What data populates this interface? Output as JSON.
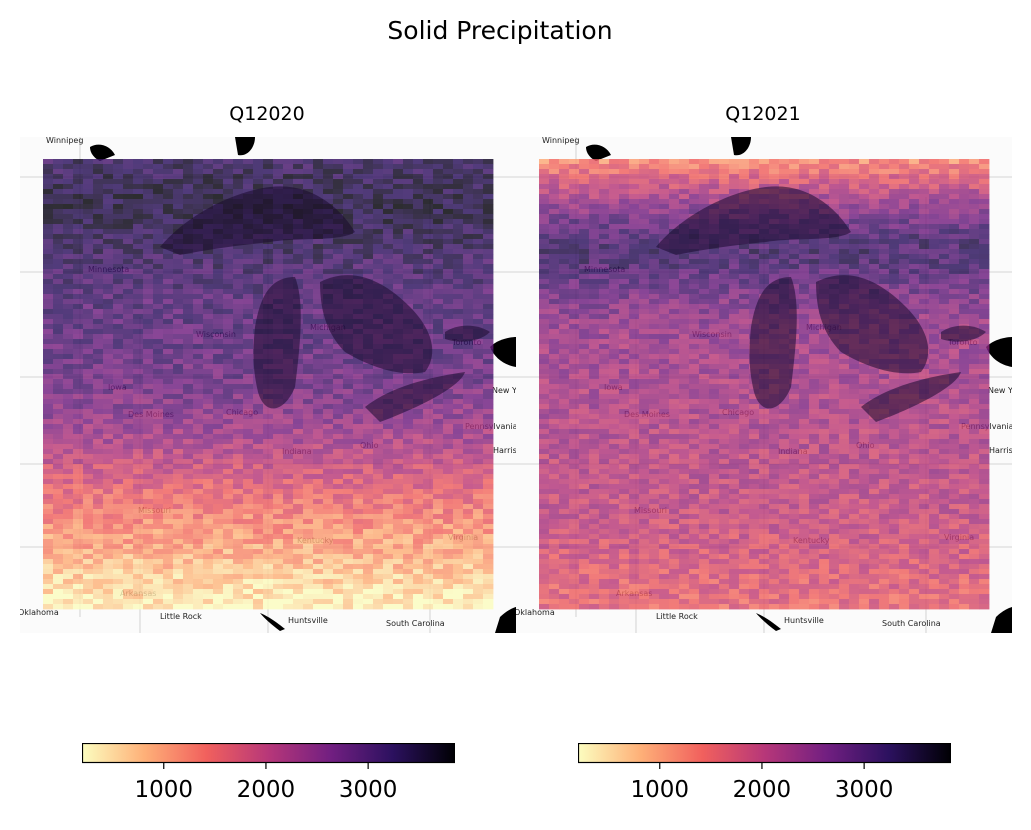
{
  "figure": {
    "title": "Solid Precipitation"
  },
  "colormap": {
    "name": "magma_r",
    "stops": [
      "#fcfdbf",
      "#feb078",
      "#f1605d",
      "#b73779",
      "#721f81",
      "#2c115f",
      "#000004"
    ]
  },
  "chart_data": [
    {
      "type": "heatmap",
      "panel_title": "Q12020",
      "description_type": "gridded map overlay on Great Lakes region basemap",
      "colorbar": {
        "vmin": 200,
        "vmax": 3850,
        "ticks": [
          1000,
          2000,
          3000
        ],
        "tick_labels": [
          "1000",
          "2000",
          "3000"
        ]
      },
      "row_profile": [
        3300,
        3450,
        3550,
        3400,
        3250,
        3100,
        3000,
        2950,
        2900,
        2800,
        2650,
        2450,
        2200,
        1900,
        1600,
        1300,
        1050,
        800,
        550,
        300
      ],
      "basemap_labels": [
        "Winnipeg",
        "Minnesota",
        "Wisconsin",
        "Michigan",
        "Iowa",
        "Chicago",
        "Des Moines",
        "Indiana",
        "Ohio",
        "Pennsylvania",
        "Missouri",
        "Kentucky",
        "Virginia",
        "Arkansas",
        "Oklahoma",
        "Little Rock",
        "Huntsville",
        "South Carolina",
        "Toronto",
        "New York",
        "Harrisburg"
      ]
    },
    {
      "type": "heatmap",
      "panel_title": "Q12021",
      "description_type": "gridded map overlay on Great Lakes region basemap",
      "colorbar": {
        "vmin": 200,
        "vmax": 3850,
        "ticks": [
          1000,
          2000,
          3000
        ],
        "tick_labels": [
          "1000",
          "2000",
          "3000"
        ]
      },
      "row_profile": [
        1200,
        1900,
        2500,
        3000,
        3200,
        2900,
        2600,
        2400,
        2300,
        2250,
        2200,
        2150,
        2100,
        2050,
        2000,
        1950,
        1850,
        1750,
        1650,
        1550
      ],
      "basemap_labels": [
        "Winnipeg",
        "Minnesota",
        "Wisconsin",
        "Michigan",
        "Iowa",
        "Chicago",
        "Des Moines",
        "Indiana",
        "Ohio",
        "Pennsylvania",
        "Missouri",
        "Kentucky",
        "Virginia",
        "Arkansas",
        "Oklahoma",
        "Little Rock",
        "Huntsville",
        "South Carolina",
        "Toronto",
        "New York",
        "Harrisburg"
      ]
    }
  ]
}
